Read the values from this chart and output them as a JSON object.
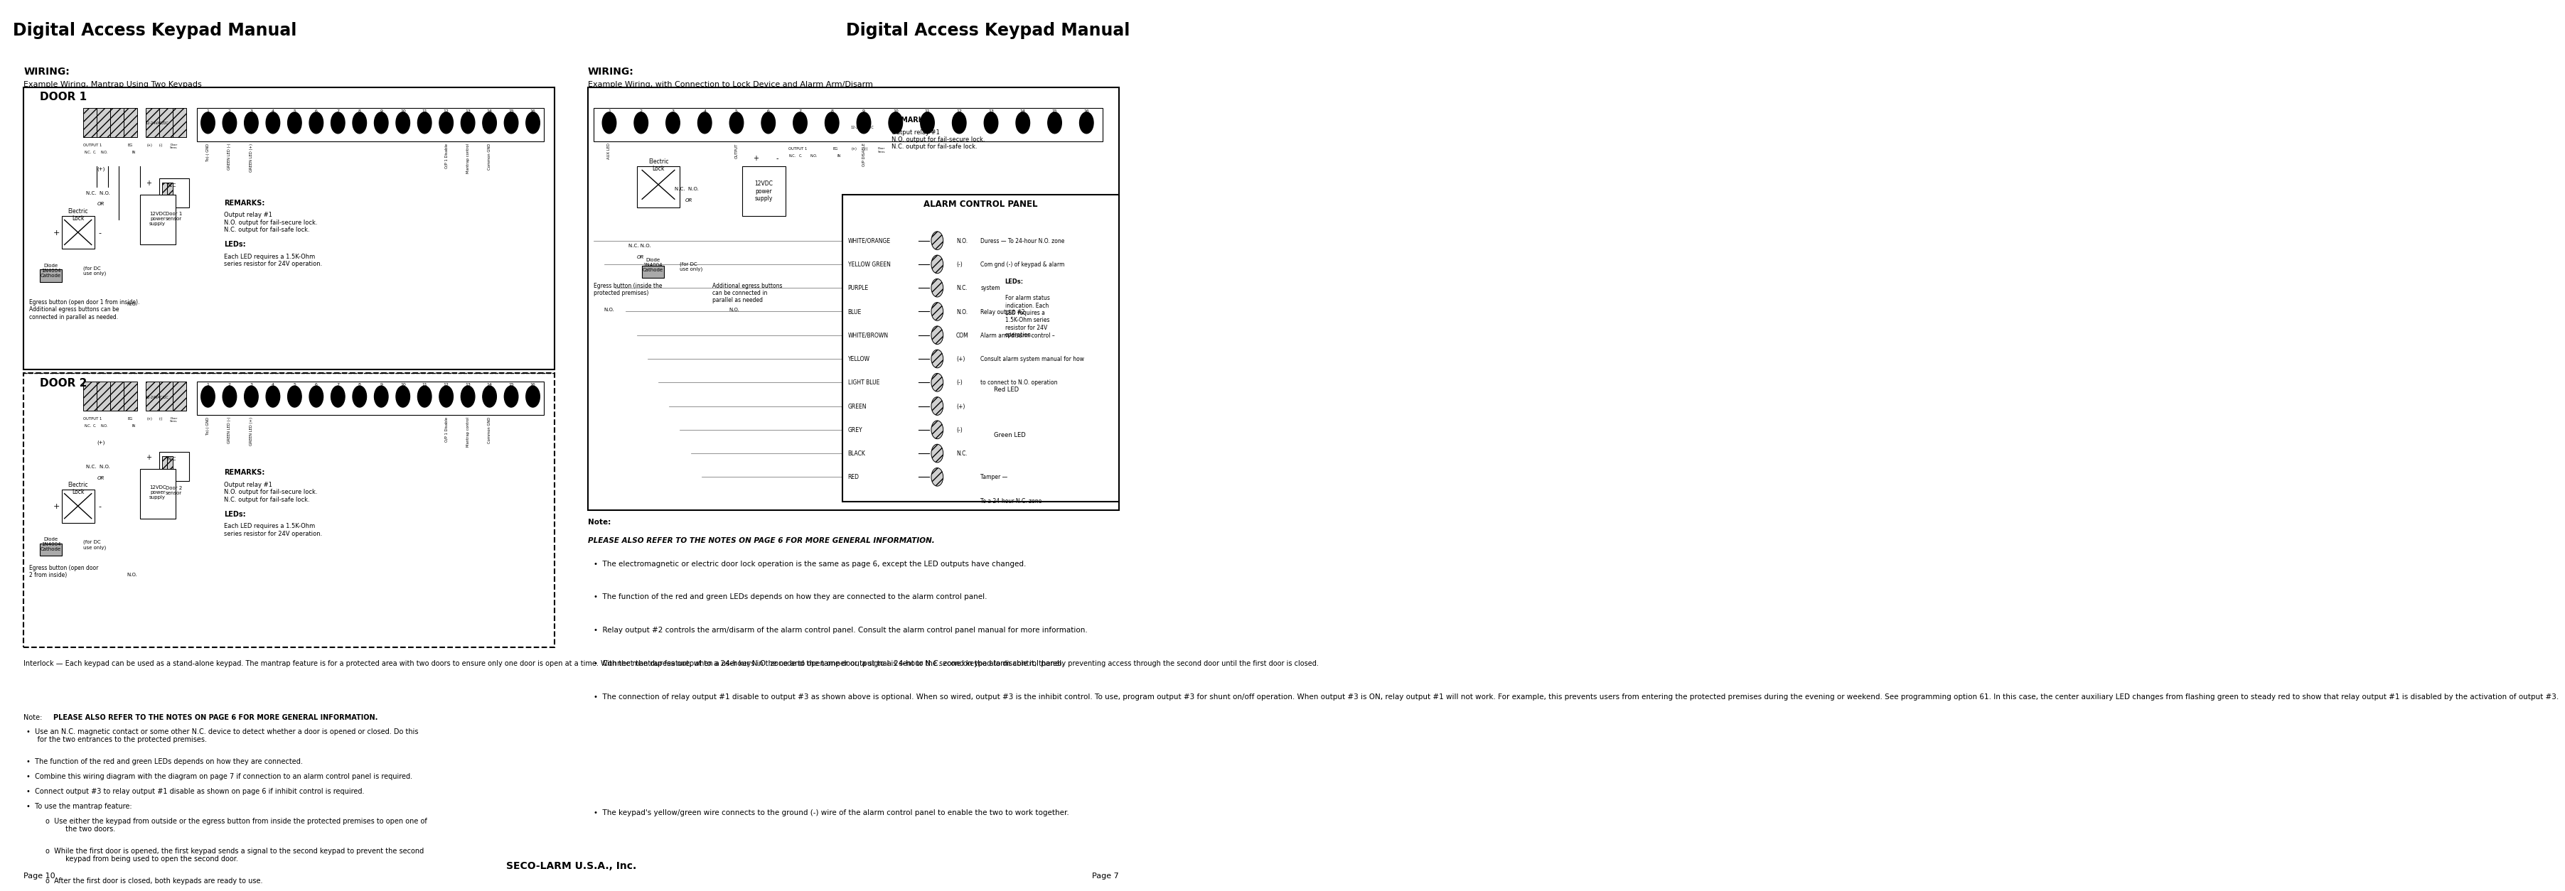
{
  "title_left": "Digital Access Keypad Manual",
  "title_right": "Digital Access Keypad Manual",
  "page_left": "Page 10",
  "page_right": "Page 7",
  "company": "SECO-LARM U.S.A., Inc.",
  "left_wiring_title": "WIRING:",
  "left_wiring_sub": "Example Wiring, Mantrap Using Two Keypads",
  "right_wiring_title": "WIRING:",
  "right_wiring_sub": "Example Wiring, with Connection to Lock Device and Alarm Arm/Disarm",
  "interlock_para": "Interlock — Each keypad can be used as a stand-alone keypad. The mantrap feature is for a protected area with two doors to ensure only one door is open at a time. With the mantrap feature, when a user keys in the code to open one door, a signal is sent to the second keypad to disable it, thereby preventing access through the second door until the first door is closed.",
  "note_label": "Note:",
  "note_bold": "PLEASE ALSO REFER TO THE NOTES ON PAGE 6 FOR MORE GENERAL INFORMATION.",
  "bullets_left": [
    "Use an N.C. magnetic contact or some other N.C. device to detect whether a door is opened or closed. Do this for the two entrances to the protected premises.",
    "The function of the red and green LEDs depends on how they are connected.",
    "Combine this wiring diagram with the diagram on page 7 if connection to an alarm control panel is required.",
    "Connect output #3 to relay output #1 disable as shown on page 6 if inhibit control is required.",
    "To use the mantrap feature:"
  ],
  "mantrap_subs": [
    "Use either the keypad from outside or the egress button from inside the protected premises to open one of the two doors.",
    "While the first door is opened, the first keypad sends a signal to the second keypad to prevent the second keypad from being used to open the second door.",
    "After the first door is closed, both keypads are ready to use."
  ],
  "note_right_label": "Note:",
  "note_right_bold": "PLEASE ALSO REFER TO THE NOTES ON PAGE 6 FOR MORE GENERAL INFORMATION.",
  "bullets_right": [
    "The electromagnetic or electric door lock operation is the same as page 6, except the LED outputs have changed.",
    "The function of the red and green LEDs depends on how they are connected to the alarm control panel.",
    "Relay output #2 controls the arm/disarm of the alarm control panel. Consult the alarm control panel manual for more information.",
    "Connect the duress output to a 24-hour N.O. zone and the tamper output to a 24-hour N.C. zone on the alarm control panel.",
    "The connection of relay output #1 disable to output #3 as shown above is optional. When so wired, output #3 is the inhibit control. To use, program output #3 for shunt on/off operation. When output #3 is ON, relay output #1 will not work. For example, this prevents users from entering the protected premises during the evening or weekend. See programming option 61. In this case, the center auxiliary LED changes from flashing green to steady red to show that relay output #1 is disabled by the activation of output #3.",
    "The keypad's yellow/green wire connects to the ground (-) wire of the alarm control panel to enable the two to work together."
  ],
  "wire_names": [
    "WHITE/ORANGE",
    "YELLOW GREEN",
    "PURPLE",
    "BLUE",
    "WHITE/BROWN",
    "YELLOW",
    "LIGHT BLUE",
    "GREEN",
    "GREY",
    "BLACK",
    "RED"
  ],
  "wire_symbols": [
    "N.O.",
    "(-)",
    "N.C.",
    "N.O.",
    "COM",
    "(+)",
    "(-)",
    "(+)",
    "(-)",
    "N.C.",
    ""
  ],
  "wire_right_text": [
    "Duress — To 24-hour N.O. zone",
    "Com gnd (-) of keypad & alarm",
    "system",
    "Relay output #2",
    "Alarm arm/disarm control –",
    "Consult alarm system manual for how",
    "to connect to N.O. operation",
    "",
    "",
    "",
    "Tamper —",
    "To a 24-hour N.C. zone"
  ]
}
